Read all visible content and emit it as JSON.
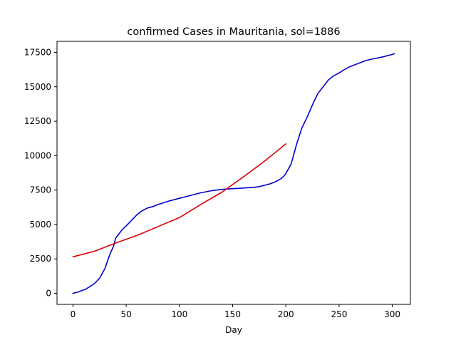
{
  "chart_data": {
    "type": "line",
    "title": "confirmed Cases in Mauritania, sol=1886",
    "xlabel": "Day",
    "ylabel": "",
    "xlim": [
      -15,
      317
    ],
    "ylim": [
      -800,
      18300
    ],
    "xticks": [
      0,
      50,
      100,
      150,
      200,
      250,
      300
    ],
    "yticks": [
      0,
      2500,
      5000,
      7500,
      10000,
      12500,
      15000,
      17500
    ],
    "xtick_labels": [
      "0",
      "50",
      "100",
      "150",
      "200",
      "250",
      "300"
    ],
    "ytick_labels": [
      "0",
      "2500",
      "5000",
      "7500",
      "10000",
      "12500",
      "15000",
      "17500"
    ],
    "grid": false,
    "legend": "none",
    "series": [
      {
        "color": "#0000cc",
        "x": [
          0,
          5,
          8,
          12,
          16,
          20,
          25,
          30,
          35,
          38,
          40,
          43,
          46,
          50,
          55,
          60,
          65,
          70,
          75,
          80,
          90,
          100,
          110,
          120,
          130,
          140,
          150,
          160,
          170,
          175,
          180,
          185,
          190,
          195,
          198,
          200,
          205,
          210,
          215,
          220,
          225,
          230,
          235,
          240,
          245,
          250,
          255,
          260,
          265,
          270,
          275,
          280,
          290,
          300,
          302
        ],
        "y": [
          0,
          100,
          200,
          300,
          500,
          700,
          1100,
          1800,
          2900,
          3400,
          4000,
          4300,
          4600,
          4900,
          5300,
          5700,
          6000,
          6200,
          6300,
          6450,
          6700,
          6900,
          7100,
          7300,
          7450,
          7550,
          7600,
          7650,
          7700,
          7750,
          7850,
          7950,
          8100,
          8300,
          8500,
          8700,
          9400,
          10800,
          12000,
          12800,
          13700,
          14500,
          15000,
          15500,
          15800,
          16000,
          16250,
          16450,
          16600,
          16750,
          16900,
          17000,
          17150,
          17350,
          17400
        ]
      },
      {
        "color": "#dd0000",
        "x": [
          0,
          20,
          40,
          60,
          80,
          100,
          120,
          140,
          160,
          180,
          200
        ],
        "y": [
          2650,
          3050,
          3650,
          4200,
          4850,
          5500,
          6450,
          7350,
          8450,
          9600,
          10850
        ]
      }
    ]
  }
}
